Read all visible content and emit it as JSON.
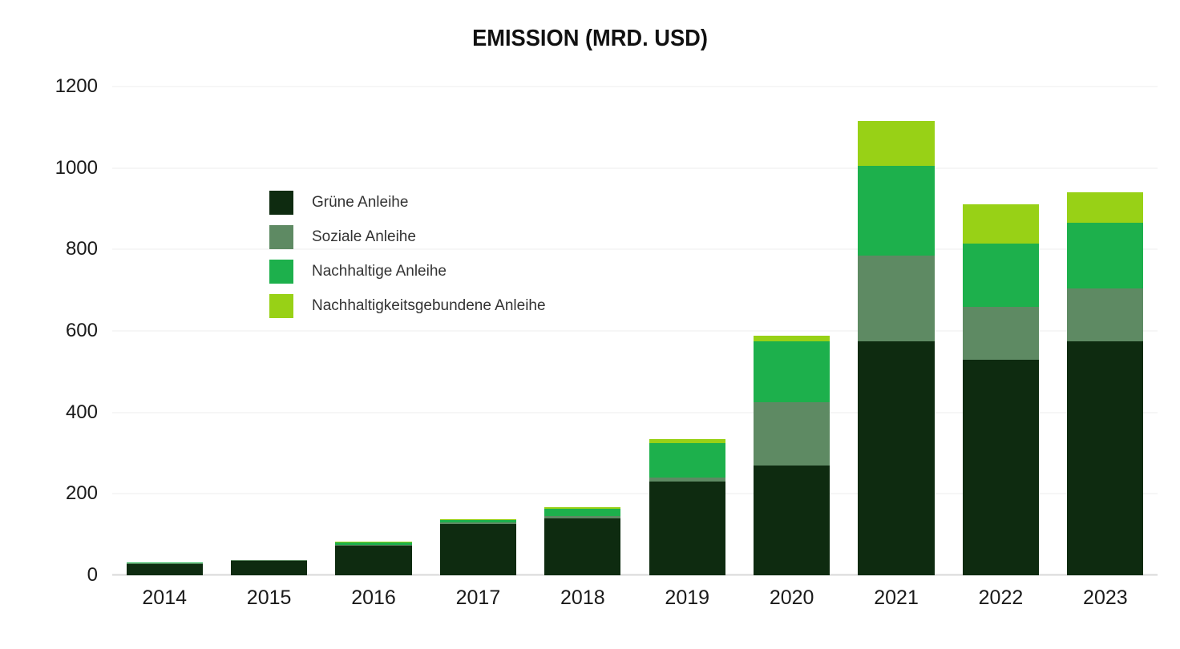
{
  "chart_data": {
    "type": "bar",
    "stacked": true,
    "title": "EMISSION (MRD. USD)",
    "categories": [
      "2014",
      "2015",
      "2016",
      "2017",
      "2018",
      "2019",
      "2020",
      "2021",
      "2022",
      "2023"
    ],
    "series": [
      {
        "name": "Grüne Anleihe",
        "color": "#0e2b10",
        "values": [
          27,
          36,
          72,
          125,
          140,
          230,
          270,
          575,
          530,
          575
        ]
      },
      {
        "name": "Soziale Anleihe",
        "color": "#5e8a63",
        "values": [
          2,
          1,
          2,
          5,
          6,
          10,
          155,
          210,
          130,
          130
        ]
      },
      {
        "name": "Nachhaltige Anleihe",
        "color": "#1db04c",
        "values": [
          2,
          1,
          6,
          5,
          18,
          85,
          150,
          220,
          155,
          160
        ]
      },
      {
        "name": "Nachhaltigkeitsgebundene Anleihe",
        "color": "#98d116",
        "values": [
          0,
          0,
          2,
          2,
          3,
          10,
          13,
          110,
          95,
          75
        ]
      }
    ],
    "xlabel": "",
    "ylabel": "",
    "ylim": [
      0,
      1200
    ],
    "yticks": [
      0,
      200,
      400,
      600,
      800,
      1000,
      1200
    ],
    "grid": true,
    "legend_position": "top-left"
  }
}
